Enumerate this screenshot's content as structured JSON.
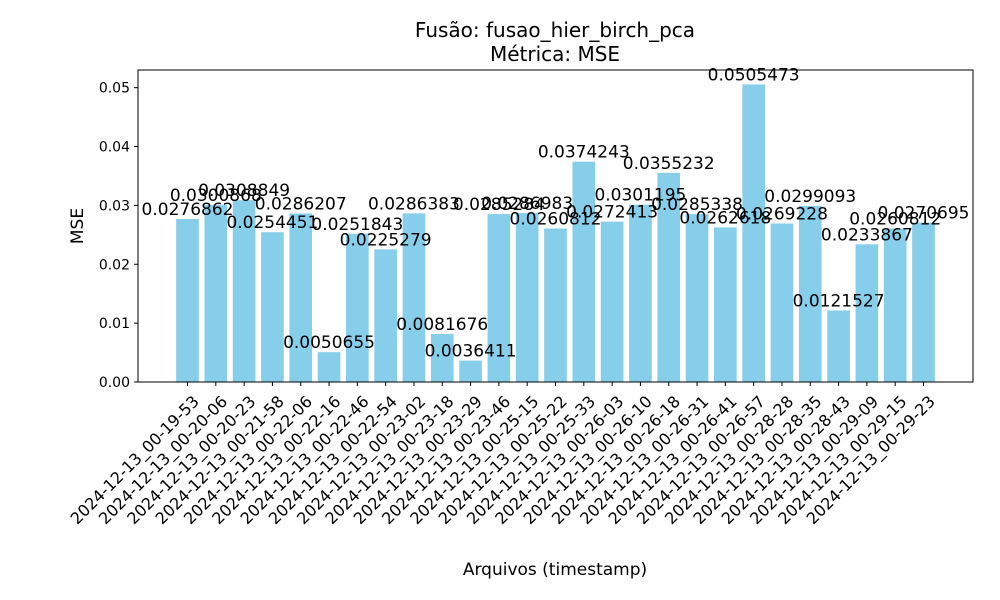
{
  "chart_data": {
    "type": "bar",
    "title": "Fusão: fusao_hier_birch_pca",
    "subtitle": "Métrica: MSE",
    "xlabel": "Arquivos (timestamp)",
    "ylabel": "MSE",
    "ylim": [
      0,
      0.053
    ],
    "yticks": [
      "0.00",
      "0.01",
      "0.02",
      "0.03",
      "0.04",
      "0.05"
    ],
    "ytick_values": [
      0,
      0.01,
      0.02,
      0.03,
      0.04,
      0.05
    ],
    "grid": false,
    "bar_color": "#87ceeb",
    "categories": [
      "2024-12-13_00-19-53",
      "2024-12-13_00-20-06",
      "2024-12-13_00-20-23",
      "2024-12-13_00-21-58",
      "2024-12-13_00-22-06",
      "2024-12-13_00-22-16",
      "2024-12-13_00-22-46",
      "2024-12-13_00-22-54",
      "2024-12-13_00-23-02",
      "2024-12-13_00-23-18",
      "2024-12-13_00-23-29",
      "2024-12-13_00-23-46",
      "2024-12-13_00-25-15",
      "2024-12-13_00-25-22",
      "2024-12-13_00-25-33",
      "2024-12-13_00-26-03",
      "2024-12-13_00-26-10",
      "2024-12-13_00-26-18",
      "2024-12-13_00-26-31",
      "2024-12-13_00-26-41",
      "2024-12-13_00-26-57",
      "2024-12-13_00-28-28",
      "2024-12-13_00-28-35",
      "2024-12-13_00-28-43",
      "2024-12-13_00-29-09",
      "2024-12-13_00-29-15",
      "2024-12-13_00-29-23"
    ],
    "values": [
      0.0276862,
      0.0300868,
      0.0308849,
      0.0254451,
      0.0286207,
      0.0050655,
      0.0251843,
      0.0225279,
      0.0286383,
      0.0081676,
      0.0036411,
      0.0285284,
      0.0286983,
      0.0260812,
      0.0374243,
      0.0272413,
      0.0301195,
      0.0355232,
      0.0285338,
      0.0262618,
      0.0505473,
      0.0269228,
      0.0299093,
      0.0121527,
      0.0233867,
      0.0260812,
      0.0270695
    ],
    "data_labels": [
      "0.0276862",
      "0.0300868",
      "0.0308849",
      "0.0254451",
      "0.0286207",
      "0.0050655",
      "0.0251843",
      "0.0225279",
      "0.0286383",
      "0.0081676",
      "0.0036411",
      "0.0285284",
      "0.0286983",
      "0.0260812",
      "0.0374243",
      "0.0272413",
      "0.0301195",
      "0.0355232",
      "0.0285338",
      "0.0262618",
      "0.0505473",
      "0.0269228",
      "0.0299093",
      "0.0121527",
      "0.0233867",
      "0.0260812",
      "0.0270695"
    ]
  }
}
